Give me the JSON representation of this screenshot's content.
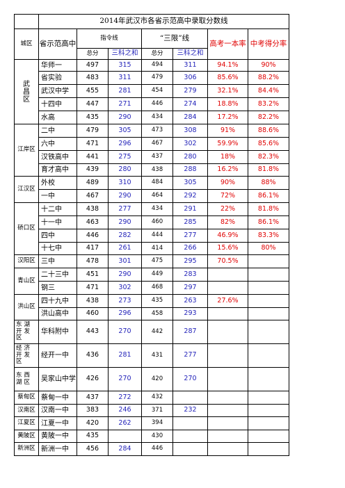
{
  "title": "2014年武汉市各省示范高中录取分数线",
  "headers": {
    "district": "城区",
    "school": "省示范高中",
    "zhiling": "指令线",
    "sanxian": "“三限”线",
    "gaokao_rate": "高考一本率",
    "zhongkao_rate": "中考得分率",
    "total": "总分",
    "three_sum": "三科之和"
  },
  "districts": {
    "wuchang": "武\n昌\n区",
    "jiangan": "江岸区",
    "jianghan": "江汉区",
    "qiaokou": "硚口区",
    "hanyang": "汉阳区",
    "qingshan": "青山区",
    "hongshan": "洪山区",
    "donghu": "东湖开发区",
    "jingkai": "经济开发区",
    "dongxihu": "东西湖区",
    "caidian": "蔡甸区",
    "hannan": "汉南区",
    "jiangxia": "江夏区",
    "huangpi": "黄陂区",
    "xinzhou": "新洲区"
  },
  "rows": [
    {
      "school": "华师一",
      "z_total": "497",
      "z_three": "315",
      "s_total": "494",
      "s_three": "311",
      "gaokao": "94.1%",
      "zhongkao": "90%"
    },
    {
      "school": "省实验",
      "z_total": "483",
      "z_three": "311",
      "s_total": "479",
      "s_three": "306",
      "gaokao": "85.6%",
      "zhongkao": "88.2%"
    },
    {
      "school": "武汉中学",
      "z_total": "455",
      "z_three": "281",
      "s_total": "454",
      "s_three": "279",
      "gaokao": "32.1%",
      "zhongkao": "84.4%"
    },
    {
      "school": "十四中",
      "z_total": "447",
      "z_three": "271",
      "s_total": "446",
      "s_three": "274",
      "gaokao": "18.8%",
      "zhongkao": "83.2%"
    },
    {
      "school": "水高",
      "z_total": "435",
      "z_three": "290",
      "s_total": "434",
      "s_three": "284",
      "gaokao": "17.2%",
      "zhongkao": "82.2%"
    },
    {
      "school": "二中",
      "z_total": "479",
      "z_three": "305",
      "s_total": "473",
      "s_three": "308",
      "gaokao": "91%",
      "zhongkao": "88.6%"
    },
    {
      "school": "六中",
      "z_total": "471",
      "z_three": "296",
      "s_total": "467",
      "s_three": "302",
      "gaokao": "59.9%",
      "zhongkao": "85.6%"
    },
    {
      "school": "汉铁高中",
      "z_total": "441",
      "z_three": "275",
      "s_total": "437",
      "s_three": "280",
      "gaokao": "18%",
      "zhongkao": "82.3%"
    },
    {
      "school": "育才高中",
      "z_total": "439",
      "z_three": "280",
      "s_total": "438",
      "s_three": "288",
      "gaokao": "16.2%",
      "zhongkao": "81.8%"
    },
    {
      "school": "外校",
      "z_total": "489",
      "z_three": "310",
      "s_total": "484",
      "s_three": "305",
      "gaokao": "90%",
      "zhongkao": "88%"
    },
    {
      "school": "一中",
      "z_total": "467",
      "z_three": "290",
      "s_total": "464",
      "s_three": "292",
      "gaokao": "72%",
      "zhongkao": "86.1%"
    },
    {
      "school": "十二中",
      "z_total": "438",
      "z_three": "277",
      "s_total": "434",
      "s_three": "291",
      "gaokao": "22%",
      "zhongkao": "81.8%"
    },
    {
      "school": "十一中",
      "z_total": "463",
      "z_three": "290",
      "s_total": "460",
      "s_three": "285",
      "gaokao": "82%",
      "zhongkao": "86.1%"
    },
    {
      "school": "四中",
      "z_total": "446",
      "z_three": "282",
      "s_total": "444",
      "s_three": "277",
      "gaokao": "46.9%",
      "zhongkao": "83.3%"
    },
    {
      "school": "十七中",
      "z_total": "417",
      "z_three": "261",
      "s_total": "414",
      "s_three": "266",
      "gaokao": "15.6%",
      "zhongkao": "80%"
    },
    {
      "school": "三中",
      "z_total": "478",
      "z_three": "301",
      "s_total": "475",
      "s_three": "295",
      "gaokao": "70.5%",
      "zhongkao": ""
    },
    {
      "school": "二十三中",
      "z_total": "451",
      "z_three": "290",
      "s_total": "449",
      "s_three": "283",
      "gaokao": "",
      "zhongkao": ""
    },
    {
      "school": "钢三",
      "z_total": "471",
      "z_three": "302",
      "s_total": "468",
      "s_three": "297",
      "gaokao": "",
      "zhongkao": ""
    },
    {
      "school": "四十九中",
      "z_total": "438",
      "z_three": "273",
      "s_total": "435",
      "s_three": "263",
      "gaokao": "27.6%",
      "zhongkao": ""
    },
    {
      "school": "洪山高中",
      "z_total": "460",
      "z_three": "296",
      "s_total": "458",
      "s_three": "293",
      "gaokao": "",
      "zhongkao": ""
    },
    {
      "school": "华科附中",
      "z_total": "443",
      "z_three": "270",
      "s_total": "442",
      "s_three": "287",
      "gaokao": "",
      "zhongkao": ""
    },
    {
      "school": "经开一中",
      "z_total": "436",
      "z_three": "281",
      "s_total": "431",
      "s_three": "277",
      "gaokao": "",
      "zhongkao": ""
    },
    {
      "school": "吴家山中学",
      "z_total": "426",
      "z_three": "270",
      "s_total": "420",
      "s_three": "270",
      "gaokao": "",
      "zhongkao": ""
    },
    {
      "school": "蔡甸一中",
      "z_total": "437",
      "z_three": "272",
      "s_total": "432",
      "s_three": "",
      "gaokao": "",
      "zhongkao": ""
    },
    {
      "school": "汉南一中",
      "z_total": "383",
      "z_three": "246",
      "s_total": "371",
      "s_three": "232",
      "gaokao": "",
      "zhongkao": ""
    },
    {
      "school": "江夏一中",
      "z_total": "420",
      "z_three": "262",
      "s_total": "394",
      "s_three": "",
      "gaokao": "",
      "zhongkao": ""
    },
    {
      "school": "黄陂一中",
      "z_total": "435",
      "z_three": "",
      "s_total": "430",
      "s_three": "",
      "gaokao": "",
      "zhongkao": ""
    },
    {
      "school": "新洲一中",
      "z_total": "456",
      "z_three": "284",
      "s_total": "446",
      "s_three": "",
      "gaokao": "",
      "zhongkao": ""
    }
  ]
}
